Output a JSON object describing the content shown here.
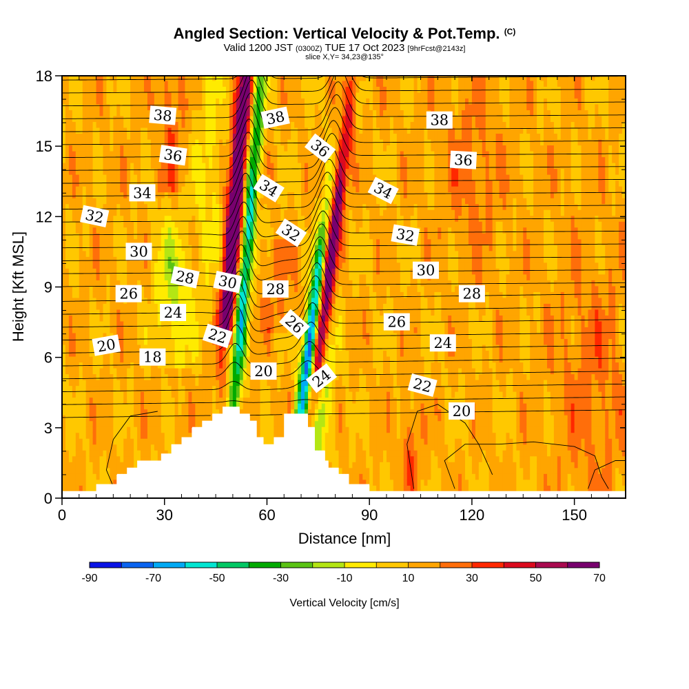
{
  "header": {
    "title": "Angled Section: Vertical Velocity & Pot.Temp.",
    "copyright": "(C)",
    "valid_prefix": "Valid 1200 JST",
    "valid_utc": "(0300Z)",
    "valid_date": "TUE 17 Oct 2023",
    "forecast": "[9hrFcst@2143z]",
    "slice": "slice X,Y= 34,23@135°"
  },
  "chart_data": {
    "type": "heatmap",
    "title": "Angled Section: Vertical Velocity & Pot.Temp.",
    "xlabel": "Distance [nm]",
    "ylabel": "Height [Kft MSL]",
    "xlim": [
      0,
      165
    ],
    "ylim": [
      0,
      18
    ],
    "x_ticks": [
      "0",
      "30",
      "60",
      "90",
      "120",
      "150"
    ],
    "x_tick_values": [
      0,
      30,
      60,
      90,
      120,
      150
    ],
    "y_ticks": [
      "0",
      "3",
      "6",
      "9",
      "12",
      "15",
      "18"
    ],
    "y_tick_values": [
      0,
      3,
      6,
      9,
      12,
      15,
      18
    ],
    "colorbar": {
      "title": "Vertical Velocity [cm/s]",
      "levels": [
        -90,
        -80,
        -70,
        -60,
        -50,
        -40,
        -30,
        -20,
        -10,
        0,
        10,
        20,
        30,
        40,
        50,
        60,
        70
      ],
      "labels": [
        "-90",
        "-70",
        "-50",
        "-30",
        "-10",
        "10",
        "30",
        "50",
        "70"
      ],
      "label_values": [
        -90,
        -70,
        -50,
        -30,
        -10,
        10,
        30,
        50,
        70
      ],
      "colors": [
        "#0a14e6",
        "#0a64f0",
        "#00aaf5",
        "#00e6d2",
        "#00c864",
        "#00aa00",
        "#5ac314",
        "#b4e614",
        "#ffeb00",
        "#ffc800",
        "#ffa500",
        "#ff6e0a",
        "#ff2800",
        "#dc0a1e",
        "#aa0a50",
        "#78006e"
      ]
    },
    "terrain_kft": [
      [
        0,
        0.3
      ],
      [
        10,
        0.3
      ],
      [
        10,
        0.6
      ],
      [
        16,
        0.6
      ],
      [
        16,
        1.0
      ],
      [
        19,
        1.0
      ],
      [
        19,
        1.3
      ],
      [
        22,
        1.3
      ],
      [
        22,
        1.6
      ],
      [
        29,
        1.6
      ],
      [
        29,
        1.9
      ],
      [
        32,
        1.9
      ],
      [
        32,
        2.3
      ],
      [
        35,
        2.3
      ],
      [
        35,
        2.6
      ],
      [
        38,
        2.6
      ],
      [
        38,
        3.0
      ],
      [
        41,
        3.0
      ],
      [
        41,
        3.3
      ],
      [
        44,
        3.3
      ],
      [
        44,
        3.6
      ],
      [
        47,
        3.6
      ],
      [
        47,
        3.9
      ],
      [
        52,
        3.9
      ],
      [
        52,
        3.6
      ],
      [
        55,
        3.6
      ],
      [
        55,
        3.3
      ],
      [
        57,
        3.3
      ],
      [
        57,
        2.6
      ],
      [
        59,
        2.6
      ],
      [
        59,
        2.3
      ],
      [
        62,
        2.3
      ],
      [
        62,
        2.6
      ],
      [
        65,
        2.6
      ],
      [
        65,
        3.6
      ],
      [
        72,
        3.6
      ],
      [
        72,
        3.0
      ],
      [
        74,
        3.0
      ],
      [
        74,
        2.0
      ],
      [
        77,
        2.0
      ],
      [
        77,
        1.6
      ],
      [
        78,
        1.6
      ],
      [
        78,
        1.3
      ],
      [
        81,
        1.3
      ],
      [
        81,
        1.0
      ],
      [
        84,
        1.0
      ],
      [
        84,
        0.6
      ],
      [
        90,
        0.6
      ],
      [
        90,
        0.3
      ],
      [
        165,
        0.3
      ]
    ],
    "isentrope_labels": [
      {
        "text": "38",
        "x": 29.5,
        "y": 16.3,
        "angle": 5
      },
      {
        "text": "38",
        "x": 62.5,
        "y": 16.2,
        "angle": -12
      },
      {
        "text": "38",
        "x": 110.5,
        "y": 16.1,
        "angle": 0
      },
      {
        "text": "36",
        "x": 32.5,
        "y": 14.6,
        "angle": 8
      },
      {
        "text": "36",
        "x": 75.5,
        "y": 14.9,
        "angle": 38
      },
      {
        "text": "36",
        "x": 117.5,
        "y": 14.4,
        "angle": 3
      },
      {
        "text": "34",
        "x": 23.5,
        "y": 13.0,
        "angle": 0
      },
      {
        "text": "34",
        "x": 60.5,
        "y": 13.2,
        "angle": 32
      },
      {
        "text": "34",
        "x": 94,
        "y": 13.1,
        "angle": 27
      },
      {
        "text": "32",
        "x": 9.5,
        "y": 12.0,
        "angle": 12
      },
      {
        "text": "32",
        "x": 67,
        "y": 11.3,
        "angle": 33
      },
      {
        "text": "32",
        "x": 100.5,
        "y": 11.2,
        "angle": 10
      },
      {
        "text": "30",
        "x": 22.5,
        "y": 10.5,
        "angle": 0
      },
      {
        "text": "30",
        "x": 106.5,
        "y": 9.7,
        "angle": 0
      },
      {
        "text": "28",
        "x": 36,
        "y": 9.4,
        "angle": 12
      },
      {
        "text": "30",
        "x": 48.5,
        "y": 9.2,
        "angle": 12
      },
      {
        "text": "28",
        "x": 62.5,
        "y": 8.9,
        "angle": 0
      },
      {
        "text": "28",
        "x": 120,
        "y": 8.7,
        "angle": 0
      },
      {
        "text": "26",
        "x": 19.5,
        "y": 8.7,
        "angle": 0
      },
      {
        "text": "24",
        "x": 32.5,
        "y": 7.9,
        "angle": 0
      },
      {
        "text": "26",
        "x": 68,
        "y": 7.4,
        "angle": 42
      },
      {
        "text": "26",
        "x": 98,
        "y": 7.5,
        "angle": 0
      },
      {
        "text": "22",
        "x": 45.5,
        "y": 6.9,
        "angle": 18
      },
      {
        "text": "24",
        "x": 111.5,
        "y": 6.6,
        "angle": 0
      },
      {
        "text": "20",
        "x": 13,
        "y": 6.5,
        "angle": -10
      },
      {
        "text": "18",
        "x": 26.5,
        "y": 6.0,
        "angle": 0
      },
      {
        "text": "20",
        "x": 59,
        "y": 5.4,
        "angle": 0
      },
      {
        "text": "24",
        "x": 76,
        "y": 5.1,
        "angle": -38
      },
      {
        "text": "22",
        "x": 105.5,
        "y": 4.8,
        "angle": 15
      },
      {
        "text": "20",
        "x": 117,
        "y": 3.7,
        "angle": 0
      }
    ]
  }
}
